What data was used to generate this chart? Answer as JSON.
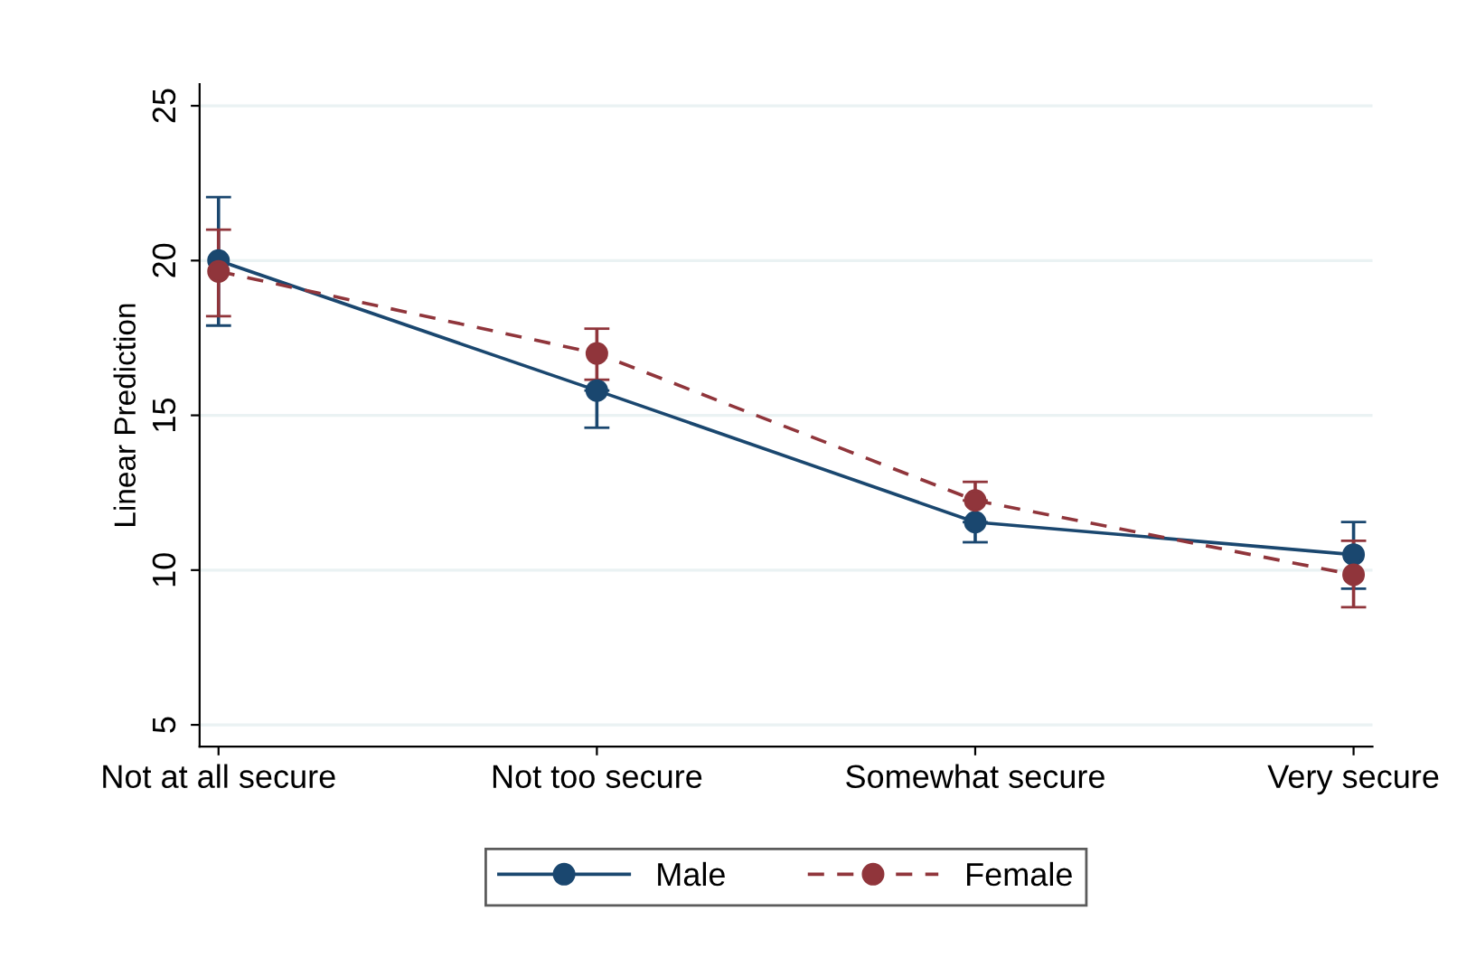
{
  "chart_data": {
    "type": "line",
    "ylabel": "Linear Prediction",
    "categories": [
      "Not at all secure",
      "Not too secure",
      "Somewhat secure",
      "Very secure"
    ],
    "series": [
      {
        "name": "Male",
        "color": "#1a476f",
        "values": [
          20.0,
          15.8,
          11.55,
          10.5
        ],
        "errors": [
          [
            17.9,
            22.05
          ],
          [
            14.6,
            15.8
          ],
          [
            10.9,
            11.55
          ],
          [
            9.4,
            11.55
          ]
        ],
        "line_style": "solid"
      },
      {
        "name": "Female",
        "color": "#90353b",
        "values": [
          19.65,
          17.0,
          12.25,
          9.85
        ],
        "errors": [
          [
            18.2,
            21.0
          ],
          [
            16.15,
            17.8
          ],
          [
            12.25,
            12.85
          ],
          [
            8.8,
            10.95
          ]
        ],
        "line_style": "dashed"
      }
    ],
    "ylim": [
      4.3,
      25.7
    ],
    "yticks": [
      5,
      10,
      15,
      20,
      25
    ],
    "grid": "y",
    "legend": "bottom",
    "marker": "circle"
  }
}
